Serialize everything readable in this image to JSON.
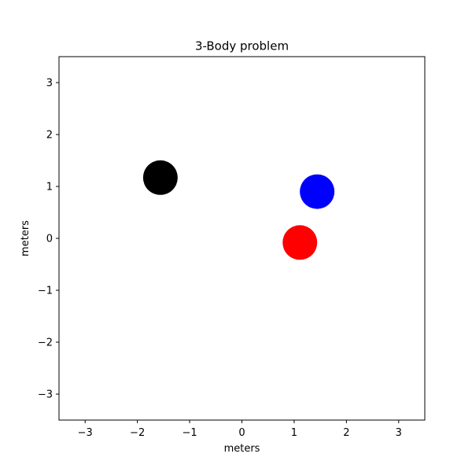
{
  "chart_data": {
    "type": "scatter",
    "title": "3-Body problem",
    "xlabel": "meters",
    "ylabel": "meters",
    "xlim": [
      -3.5,
      3.5
    ],
    "ylim": [
      -3.5,
      3.5
    ],
    "xticks": [
      -3,
      -2,
      -1,
      0,
      1,
      2,
      3
    ],
    "yticks": [
      -3,
      -2,
      -1,
      0,
      1,
      2,
      3
    ],
    "xtick_labels": [
      "−3",
      "−2",
      "−1",
      "0",
      "1",
      "2",
      "3"
    ],
    "ytick_labels": [
      "−3",
      "−2",
      "−1",
      "0",
      "1",
      "2",
      "3"
    ],
    "grid": false,
    "legend": "none",
    "points": [
      {
        "color": "#000000",
        "x": -1.56,
        "y": 1.17
      },
      {
        "color": "#0000ff",
        "x": 1.44,
        "y": 0.9
      },
      {
        "color": "#ff0000",
        "x": 1.11,
        "y": -0.08
      }
    ]
  }
}
